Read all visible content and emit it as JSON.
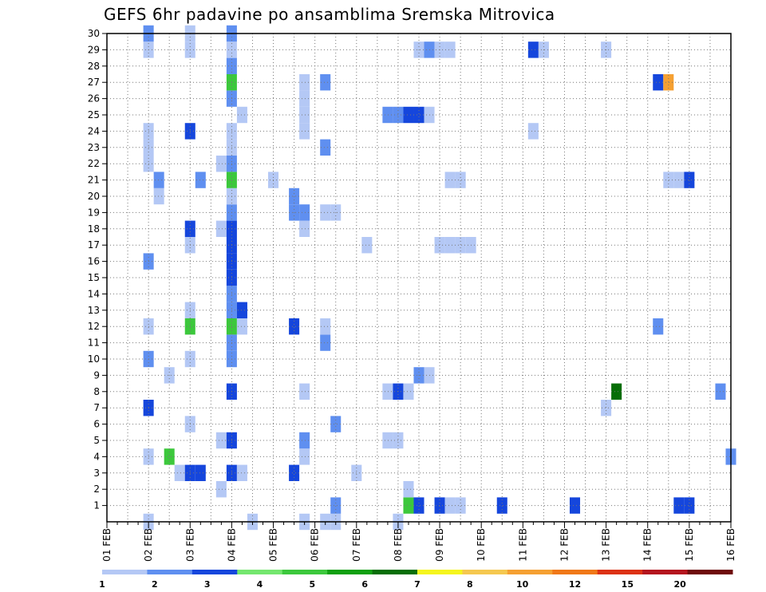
{
  "chart_data": {
    "type": "heatmap",
    "title": "GEFS 6hr padavine po ansamblima Sremska Mitrovica",
    "x_tick_labels": [
      "01 FEB",
      "02 FEB",
      "03 FEB",
      "04 FEB",
      "05 FEB",
      "06 FEB",
      "07 FEB",
      "08 FEB",
      "09 FEB",
      "10 FEB",
      "11 FEB",
      "12 FEB",
      "13 FEB",
      "14 FEB",
      "15 FEB",
      "16 FEB"
    ],
    "y_tick_labels": [
      1,
      2,
      3,
      4,
      5,
      6,
      7,
      8,
      9,
      10,
      11,
      12,
      13,
      14,
      15,
      16,
      17,
      18,
      19,
      20,
      21,
      22,
      23,
      24,
      25,
      26,
      27,
      28,
      29,
      30
    ],
    "x_range": [
      0,
      60
    ],
    "y_range": [
      0,
      30
    ],
    "x_unit": "6-hour step from 01 FEB",
    "grid": true,
    "colorbar": {
      "levels": [
        1,
        2,
        3,
        4,
        5,
        6,
        7,
        8,
        10,
        12,
        15,
        20
      ],
      "colors": [
        "#b4c8f5",
        "#5f8ff0",
        "#1546dc",
        "#74e66e",
        "#3cc83c",
        "#10a010",
        "#066e06",
        "#f5f51e",
        "#f5c850",
        "#f5a032",
        "#f07818",
        "#dc3214",
        "#b4141e",
        "#6e0a0a"
      ]
    },
    "cells": [
      [
        4,
        0,
        1
      ],
      [
        14,
        0,
        1
      ],
      [
        19,
        0,
        1
      ],
      [
        21,
        0,
        1
      ],
      [
        22,
        0,
        1
      ],
      [
        28,
        0,
        1
      ],
      [
        22,
        1,
        2
      ],
      [
        29,
        1,
        5
      ],
      [
        30,
        1,
        3
      ],
      [
        32,
        1,
        3
      ],
      [
        33,
        1,
        1
      ],
      [
        34,
        1,
        1
      ],
      [
        38,
        1,
        3
      ],
      [
        45,
        1,
        3
      ],
      [
        55,
        1,
        3
      ],
      [
        56,
        1,
        3
      ],
      [
        11,
        2,
        1
      ],
      [
        29,
        2,
        1
      ],
      [
        7,
        3,
        1
      ],
      [
        8,
        3,
        3
      ],
      [
        9,
        3,
        3
      ],
      [
        12,
        3,
        3
      ],
      [
        13,
        3,
        1
      ],
      [
        18,
        3,
        3
      ],
      [
        24,
        3,
        1
      ],
      [
        4,
        4,
        1
      ],
      [
        6,
        4,
        5
      ],
      [
        19,
        4,
        1
      ],
      [
        60,
        4,
        2
      ],
      [
        11,
        5,
        1
      ],
      [
        12,
        5,
        3
      ],
      [
        19,
        5,
        2
      ],
      [
        27,
        5,
        1
      ],
      [
        28,
        5,
        1
      ],
      [
        8,
        6,
        1
      ],
      [
        22,
        6,
        2
      ],
      [
        4,
        7,
        3
      ],
      [
        48,
        7,
        1
      ],
      [
        12,
        8,
        3
      ],
      [
        19,
        8,
        1
      ],
      [
        27,
        8,
        1
      ],
      [
        28,
        8,
        3
      ],
      [
        29,
        8,
        1
      ],
      [
        49,
        8,
        7
      ],
      [
        59,
        8,
        2
      ],
      [
        6,
        9,
        1
      ],
      [
        30,
        9,
        2
      ],
      [
        31,
        9,
        1
      ],
      [
        4,
        10,
        2
      ],
      [
        8,
        10,
        1
      ],
      [
        12,
        10,
        2
      ],
      [
        12,
        11,
        2
      ],
      [
        21,
        11,
        2
      ],
      [
        4,
        12,
        1
      ],
      [
        8,
        12,
        5
      ],
      [
        12,
        12,
        5
      ],
      [
        13,
        12,
        1
      ],
      [
        18,
        12,
        3
      ],
      [
        21,
        12,
        1
      ],
      [
        53,
        12,
        2
      ],
      [
        8,
        13,
        1
      ],
      [
        12,
        13,
        2
      ],
      [
        13,
        13,
        3
      ],
      [
        12,
        14,
        2
      ],
      [
        12,
        15,
        3
      ],
      [
        4,
        16,
        2
      ],
      [
        12,
        16,
        3
      ],
      [
        8,
        17,
        1
      ],
      [
        12,
        17,
        3
      ],
      [
        25,
        17,
        1
      ],
      [
        32,
        17,
        1
      ],
      [
        33,
        17,
        1
      ],
      [
        34,
        17,
        1
      ],
      [
        35,
        17,
        1
      ],
      [
        8,
        18,
        3
      ],
      [
        11,
        18,
        1
      ],
      [
        12,
        18,
        3
      ],
      [
        19,
        18,
        1
      ],
      [
        12,
        19,
        2
      ],
      [
        18,
        19,
        2
      ],
      [
        19,
        19,
        2
      ],
      [
        21,
        19,
        1
      ],
      [
        22,
        19,
        1
      ],
      [
        5,
        20,
        1
      ],
      [
        12,
        20,
        1
      ],
      [
        18,
        20,
        2
      ],
      [
        5,
        21,
        2
      ],
      [
        9,
        21,
        2
      ],
      [
        12,
        21,
        5
      ],
      [
        16,
        21,
        1
      ],
      [
        33,
        21,
        1
      ],
      [
        34,
        21,
        1
      ],
      [
        54,
        21,
        1
      ],
      [
        55,
        21,
        1
      ],
      [
        56,
        21,
        3
      ],
      [
        4,
        22,
        1
      ],
      [
        11,
        22,
        1
      ],
      [
        12,
        22,
        2
      ],
      [
        4,
        23,
        1
      ],
      [
        12,
        23,
        1
      ],
      [
        21,
        23,
        2
      ],
      [
        4,
        24,
        1
      ],
      [
        8,
        24,
        3
      ],
      [
        12,
        24,
        1
      ],
      [
        19,
        24,
        1
      ],
      [
        41,
        24,
        1
      ],
      [
        13,
        25,
        1
      ],
      [
        19,
        25,
        1
      ],
      [
        27,
        25,
        2
      ],
      [
        28,
        25,
        2
      ],
      [
        29,
        25,
        3
      ],
      [
        30,
        25,
        3
      ],
      [
        31,
        25,
        1
      ],
      [
        12,
        26,
        2
      ],
      [
        19,
        26,
        1
      ],
      [
        12,
        27,
        5
      ],
      [
        19,
        27,
        1
      ],
      [
        21,
        27,
        2
      ],
      [
        53,
        27,
        3
      ],
      [
        54,
        27,
        10
      ],
      [
        12,
        28,
        2
      ],
      [
        4,
        29,
        1
      ],
      [
        8,
        29,
        1
      ],
      [
        12,
        29,
        1
      ],
      [
        30,
        29,
        1
      ],
      [
        31,
        29,
        2
      ],
      [
        32,
        29,
        1
      ],
      [
        33,
        29,
        1
      ],
      [
        41,
        29,
        3
      ],
      [
        42,
        29,
        1
      ],
      [
        48,
        29,
        1
      ],
      [
        4,
        30,
        2
      ],
      [
        8,
        30,
        1
      ],
      [
        12,
        30,
        2
      ]
    ]
  }
}
